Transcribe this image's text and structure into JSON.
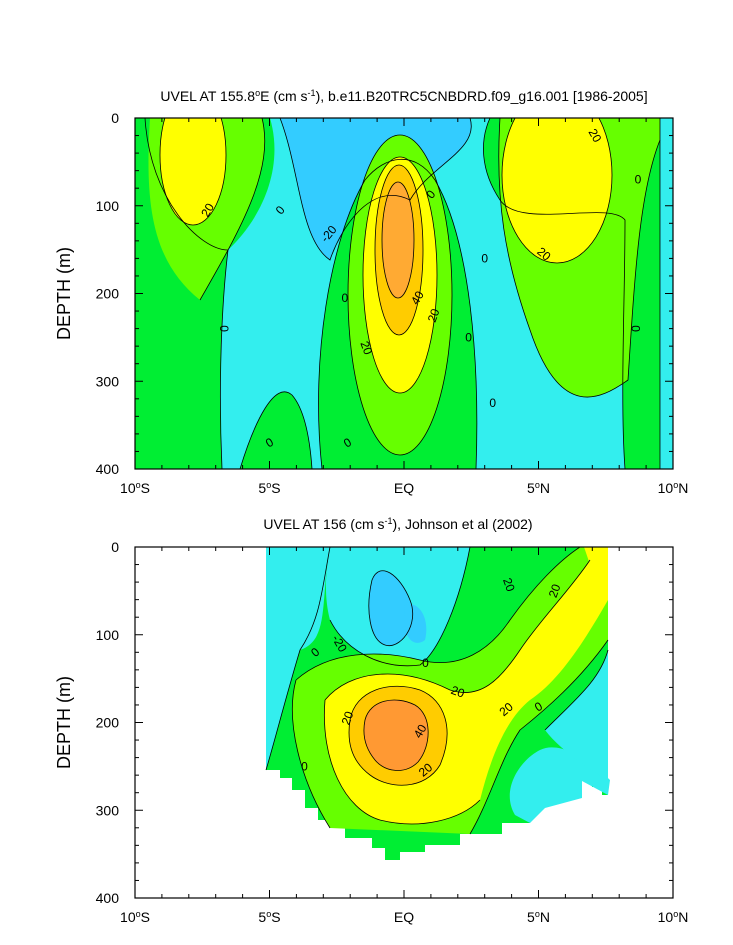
{
  "chart_data": [
    {
      "type": "contour",
      "title": "UVEL AT 155.8",
      "title_sup": "o",
      "title_after_sup": "E (cm s",
      "title_sup2": "-1",
      "title_tail": "), b.e11.B20TRC5CNBDRD.f09_g16.001 [1986-2005]",
      "ylabel": "DEPTH (m)",
      "xlim": [
        -10,
        10
      ],
      "ylim": [
        0,
        400
      ],
      "y_reversed": true,
      "x_ticks": [
        {
          "value": -10,
          "num": "10",
          "hemi": "S"
        },
        {
          "value": -5,
          "num": "5",
          "hemi": "S"
        },
        {
          "value": 0,
          "num": "EQ",
          "hemi": ""
        },
        {
          "value": 5,
          "num": "5",
          "hemi": "N"
        },
        {
          "value": 10,
          "num": "10",
          "hemi": "N"
        }
      ],
      "y_ticks": [
        "0",
        "100",
        "200",
        "300",
        "400"
      ],
      "contour_levels": [
        -20,
        0,
        20,
        30,
        40
      ],
      "colors": {
        "lt_neg20": "#33ccff",
        "neg20_0": "#33eeee",
        "0_10": "#00ee33",
        "10_20": "#66ff00",
        "20_30": "#ffff00",
        "30_40": "#ffcc00",
        "gt_40": "#ffaa33"
      },
      "features": [
        {
          "name": "westward-band",
          "lat": -3.4,
          "depth": 80,
          "value": -20
        },
        {
          "name": "eastward-core-south",
          "lat": -8.4,
          "depth": 60,
          "value": 20
        },
        {
          "name": "euc-core",
          "lat": 0,
          "depth": 200,
          "value": 45
        },
        {
          "name": "eastward-core-north",
          "lat": 5.8,
          "depth": 60,
          "value": 25
        }
      ],
      "contour_labels": [
        {
          "text": "20",
          "x": -7.3,
          "y": 105,
          "rot": -60
        },
        {
          "text": "0",
          "x": -4.6,
          "y": 105,
          "rot": -50
        },
        {
          "text": "-20",
          "x": -2.8,
          "y": 132,
          "rot": -50
        },
        {
          "text": "0",
          "x": 1,
          "y": 87,
          "rot": -50
        },
        {
          "text": "0",
          "x": -2.2,
          "y": 205,
          "rot": 0
        },
        {
          "text": "40",
          "x": 0.5,
          "y": 205,
          "rot": -60
        },
        {
          "text": "20",
          "x": 1.1,
          "y": 225,
          "rot": -70
        },
        {
          "text": "20",
          "x": -1.4,
          "y": 262,
          "rot": 70
        },
        {
          "text": "0",
          "x": 2.4,
          "y": 250,
          "rot": 0
        },
        {
          "text": "0",
          "x": 3,
          "y": 160,
          "rot": 0
        },
        {
          "text": "0",
          "x": 3.3,
          "y": 325,
          "rot": 0
        },
        {
          "text": "0",
          "x": -5,
          "y": 370,
          "rot": -30
        },
        {
          "text": "0",
          "x": -2.1,
          "y": 370,
          "rot": -30
        },
        {
          "text": "0",
          "x": -6.7,
          "y": 240,
          "rot": 90
        },
        {
          "text": "20",
          "x": 7.1,
          "y": 20,
          "rot": 60
        },
        {
          "text": "0",
          "x": 8.7,
          "y": 70,
          "rot": 0
        },
        {
          "text": "20",
          "x": 5.2,
          "y": 155,
          "rot": 40
        },
        {
          "text": "0",
          "x": 8.6,
          "y": 240,
          "rot": 90
        }
      ]
    },
    {
      "type": "contour",
      "title": "UVEL AT 156 (cm s",
      "title_sup": "-1",
      "title_after_sup": "), Johnson et al (2002)",
      "ylabel": "DEPTH (m)",
      "xlim": [
        -10,
        10
      ],
      "ylim": [
        0,
        400
      ],
      "y_reversed": true,
      "data_lat_range": [
        -5,
        8
      ],
      "x_ticks": [
        {
          "value": -10,
          "num": "10",
          "hemi": "S"
        },
        {
          "value": -5,
          "num": "5",
          "hemi": "S"
        },
        {
          "value": 0,
          "num": "EQ",
          "hemi": ""
        },
        {
          "value": 5,
          "num": "5",
          "hemi": "N"
        },
        {
          "value": 10,
          "num": "10",
          "hemi": "N"
        }
      ],
      "y_ticks": [
        "0",
        "100",
        "200",
        "300",
        "400"
      ],
      "contour_levels": [
        -20,
        0,
        20,
        30,
        40
      ],
      "features": [
        {
          "name": "westward-band",
          "lat": 0.5,
          "depth": 90,
          "value": -25
        },
        {
          "name": "euc-core",
          "lat": -0.2,
          "depth": 200,
          "value": 45
        },
        {
          "name": "eastward-core-north",
          "lat": 7.7,
          "depth": 30,
          "value": 25
        }
      ],
      "contour_labels": [
        {
          "text": "0",
          "x": -3.3,
          "y": 120,
          "rot": -40
        },
        {
          "text": "-20",
          "x": -2.4,
          "y": 110,
          "rot": 60
        },
        {
          "text": "0",
          "x": 0.8,
          "y": 132,
          "rot": 0
        },
        {
          "text": "20",
          "x": 2,
          "y": 165,
          "rot": 20
        },
        {
          "text": "20",
          "x": -2.1,
          "y": 195,
          "rot": -70
        },
        {
          "text": "40",
          "x": 0.6,
          "y": 210,
          "rot": -60
        },
        {
          "text": "20",
          "x": 0.8,
          "y": 254,
          "rot": -40
        },
        {
          "text": "20",
          "x": 3.8,
          "y": 185,
          "rot": -40
        },
        {
          "text": "20",
          "x": 3.9,
          "y": 43,
          "rot": 70
        },
        {
          "text": "20",
          "x": 5.6,
          "y": 50,
          "rot": -70
        },
        {
          "text": "0",
          "x": -3.7,
          "y": 250,
          "rot": 0
        },
        {
          "text": "0",
          "x": 5,
          "y": 182,
          "rot": -30
        }
      ]
    }
  ]
}
